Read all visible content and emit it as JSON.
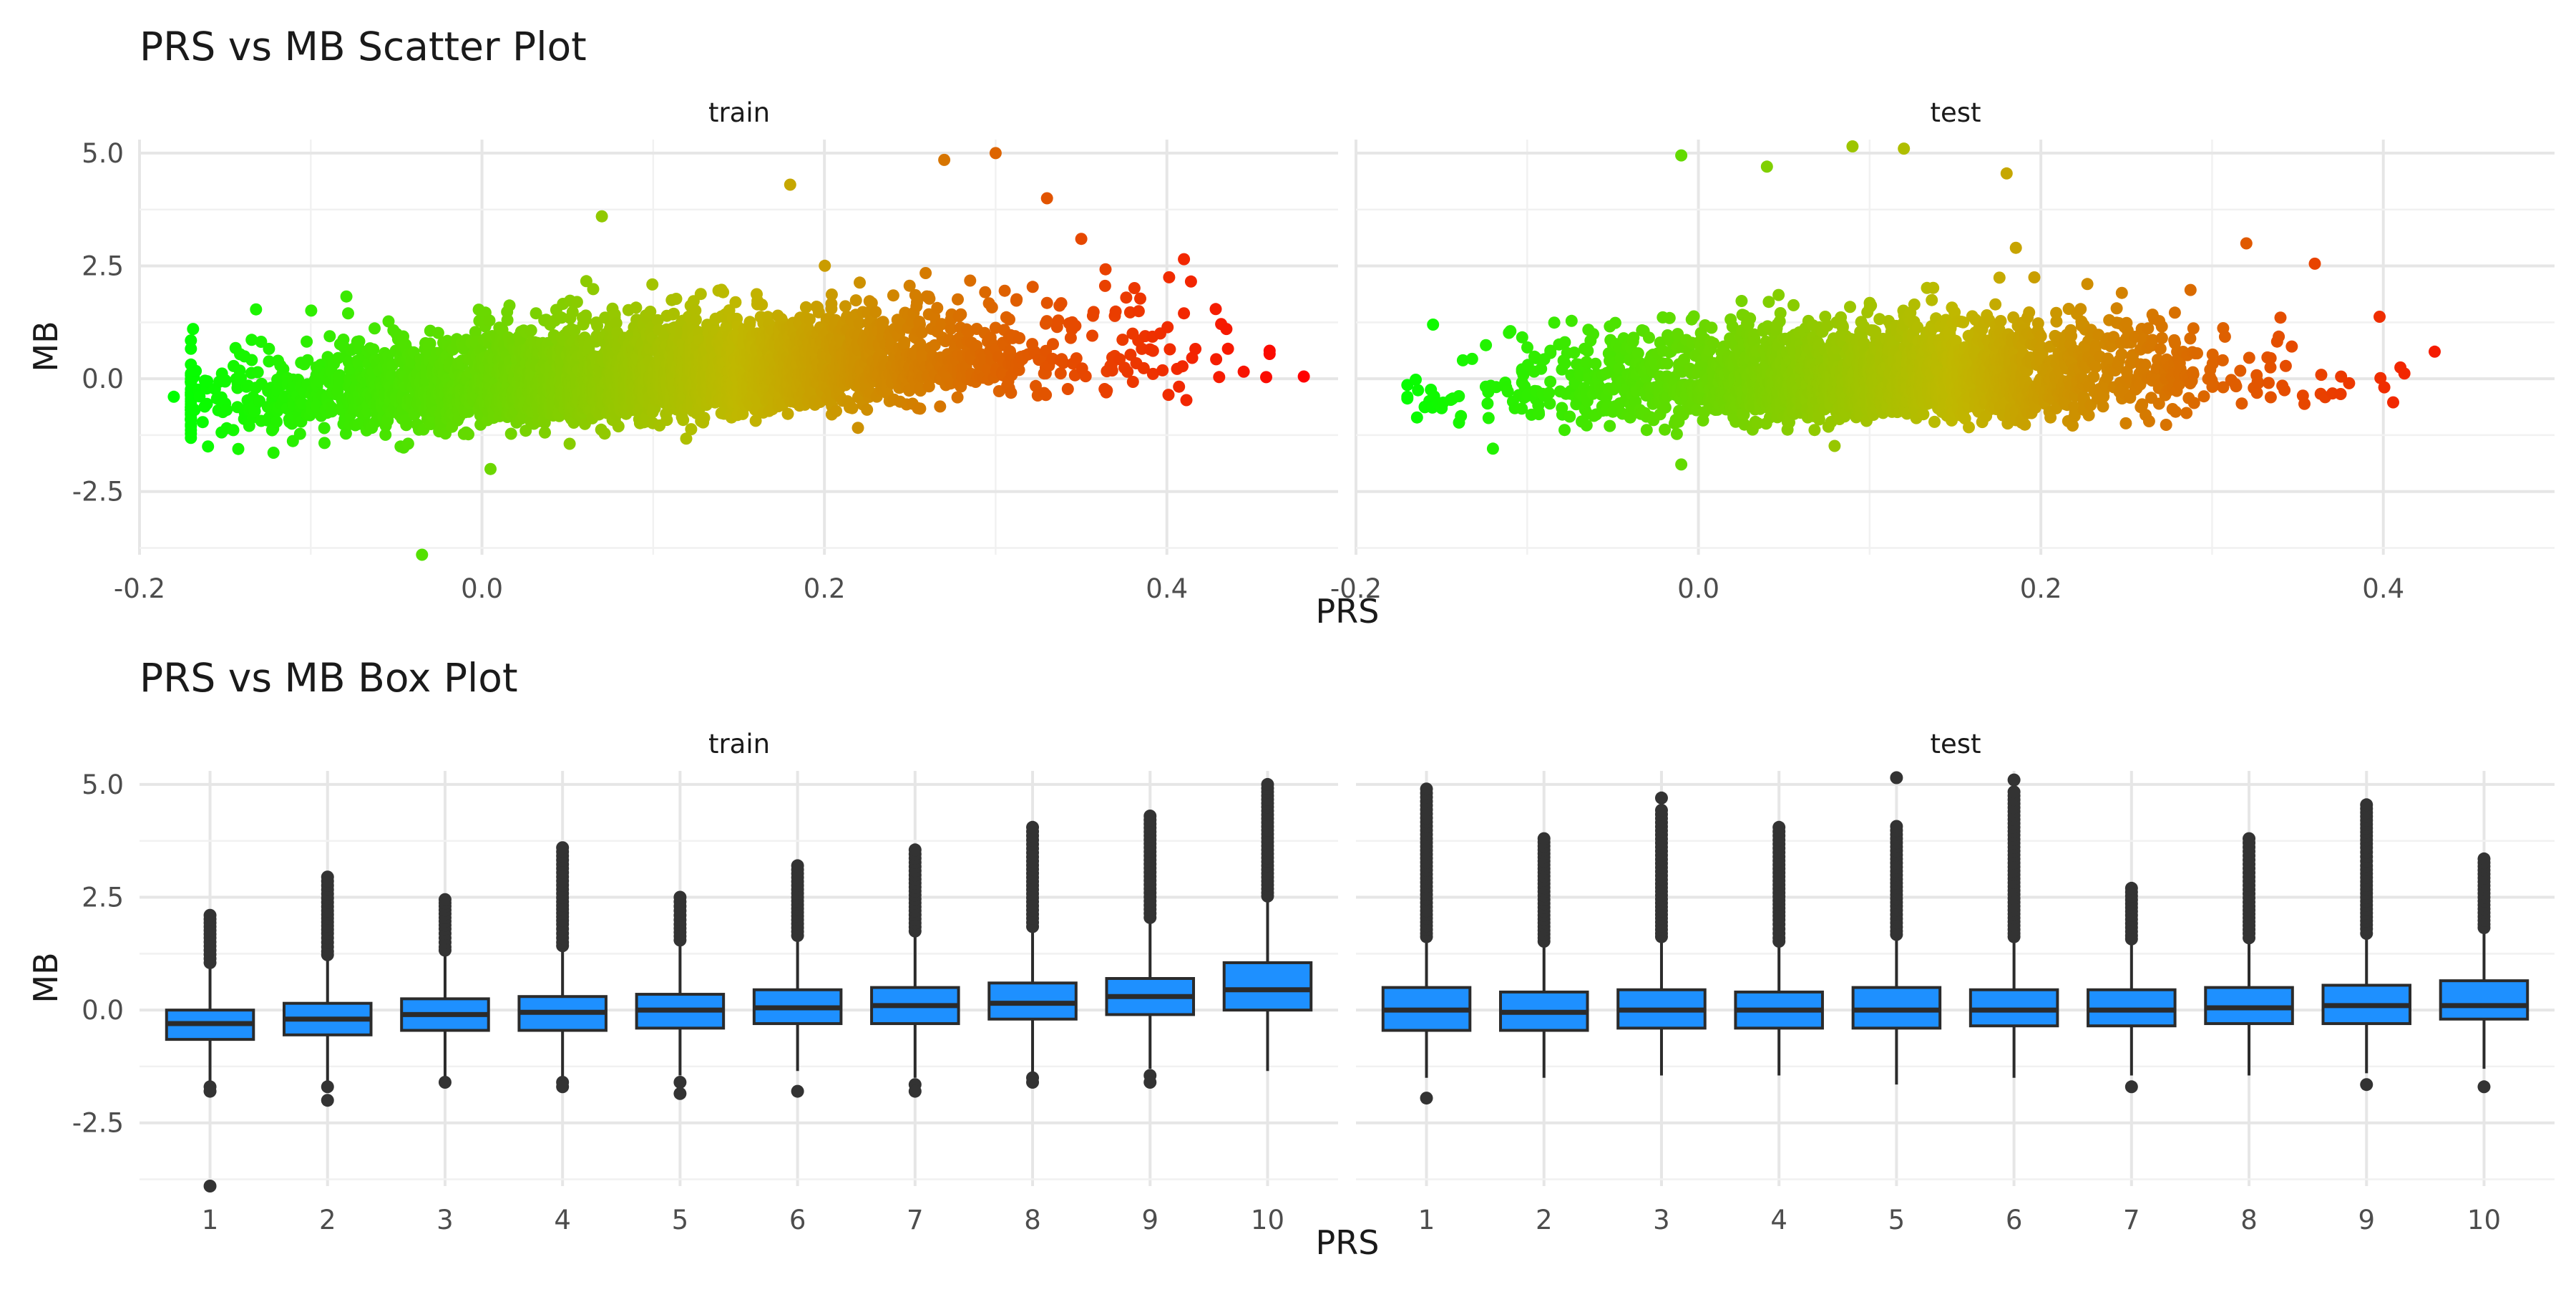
{
  "figure": {
    "scatter_title": "PRS vs MB Scatter Plot",
    "box_title": "PRS vs MB Box Plot"
  },
  "colors": {
    "gradient_low": "#00ff00",
    "gradient_mid": "#c0b800",
    "gradient_high": "#ff0000",
    "box_fill": "#1e90ff",
    "box_line": "#2b2b2b",
    "outlier": "#333333",
    "grid": "#e6e6e6"
  },
  "chart_data": [
    {
      "type": "scatter",
      "title": "PRS vs MB Scatter Plot",
      "xlabel": "PRS",
      "ylabel": "MB",
      "xlim": [
        -0.2,
        0.5
      ],
      "ylim": [
        -3.9,
        5.3
      ],
      "x_ticks": [
        -0.2,
        0.0,
        0.2,
        0.4
      ],
      "x_tick_labels": [
        "-0.2",
        "0.0",
        "0.2",
        "0.4"
      ],
      "y_ticks": [
        -2.5,
        0.0,
        2.5,
        5.0
      ],
      "y_tick_labels": [
        "-2.5",
        "0.0",
        "2.5",
        "5.0"
      ],
      "color_by": "PRS",
      "color_scale": [
        "#00ff00",
        "#c0b800",
        "#ff0000"
      ],
      "color_scale_positions": [
        -0.18,
        0.15,
        0.48
      ],
      "grid": true,
      "facets": [
        {
          "label": "train",
          "approx_points": 12000,
          "bulk_trend": {
            "x_range": [
              -0.15,
              0.33
            ],
            "y_at_min": -0.5,
            "y_at_max": 0.5,
            "spread_sd": 0.55
          },
          "highlighted_points": [
            {
              "x": 0.48,
              "y": 0.05
            },
            {
              "x": -0.035,
              "y": -3.9
            },
            {
              "x": 0.3,
              "y": 5.0
            },
            {
              "x": 0.27,
              "y": 4.85
            },
            {
              "x": 0.41,
              "y": 2.65
            },
            {
              "x": 0.41,
              "y": 1.45
            },
            {
              "x": -0.18,
              "y": -0.4
            },
            {
              "x": 0.07,
              "y": 3.6
            },
            {
              "x": 0.18,
              "y": 4.3
            },
            {
              "x": 0.35,
              "y": 3.1
            },
            {
              "x": -0.16,
              "y": -1.5
            },
            {
              "x": 0.38,
              "y": 1.0
            },
            {
              "x": 0.33,
              "y": 4.0
            },
            {
              "x": 0.005,
              "y": -2.0
            }
          ]
        },
        {
          "label": "test",
          "approx_points": 5000,
          "bulk_trend": {
            "x_range": [
              -0.1,
              0.3
            ],
            "y_at_min": -0.2,
            "y_at_max": 0.1,
            "spread_sd": 0.55
          },
          "highlighted_points": [
            {
              "x": 0.43,
              "y": 0.6
            },
            {
              "x": 0.41,
              "y": 0.25
            },
            {
              "x": 0.09,
              "y": 5.15
            },
            {
              "x": 0.12,
              "y": 5.1
            },
            {
              "x": -0.01,
              "y": 4.95
            },
            {
              "x": 0.04,
              "y": 4.7
            },
            {
              "x": 0.18,
              "y": 4.55
            },
            {
              "x": 0.32,
              "y": 3.0
            },
            {
              "x": 0.36,
              "y": 2.55
            },
            {
              "x": -0.17,
              "y": -0.4
            },
            {
              "x": -0.155,
              "y": 1.2
            },
            {
              "x": -0.12,
              "y": -1.55
            },
            {
              "x": 0.38,
              "y": -0.1
            },
            {
              "x": -0.01,
              "y": -1.9
            }
          ]
        }
      ]
    },
    {
      "type": "box",
      "title": "PRS vs MB Box Plot",
      "xlabel": "PRS",
      "ylabel": "MB",
      "categories": [
        "1",
        "2",
        "3",
        "4",
        "5",
        "6",
        "7",
        "8",
        "9",
        "10"
      ],
      "ylim": [
        -3.9,
        5.3
      ],
      "y_ticks": [
        -2.5,
        0.0,
        2.5,
        5.0
      ],
      "y_tick_labels": [
        "-2.5",
        "0.0",
        "2.5",
        "5.0"
      ],
      "grid": true,
      "facets": [
        {
          "label": "train",
          "boxes": [
            {
              "q1": -0.65,
              "median": -0.3,
              "q3": 0.0,
              "whisker_low": -1.6,
              "whisker_high": 0.95,
              "outliers_low": [
                -1.7,
                -1.8,
                -3.9
              ],
              "outliers_high": [
                1.05,
                1.6,
                2.1
              ]
            },
            {
              "q1": -0.55,
              "median": -0.2,
              "q3": 0.15,
              "whisker_low": -1.6,
              "whisker_high": 1.15,
              "outliers_low": [
                -1.7,
                -2.0
              ],
              "outliers_high": [
                1.3,
                1.7,
                2.2,
                2.95
              ]
            },
            {
              "q1": -0.45,
              "median": -0.1,
              "q3": 0.25,
              "whisker_low": -1.5,
              "whisker_high": 1.25,
              "outliers_low": [
                -1.6
              ],
              "outliers_high": [
                1.4,
                1.8,
                2.3,
                2.45
              ]
            },
            {
              "q1": -0.45,
              "median": -0.05,
              "q3": 0.3,
              "whisker_low": -1.55,
              "whisker_high": 1.35,
              "outliers_low": [
                -1.6,
                -1.7
              ],
              "outliers_high": [
                1.5,
                1.9,
                2.4,
                3.6
              ]
            },
            {
              "q1": -0.4,
              "median": 0.0,
              "q3": 0.35,
              "whisker_low": -1.45,
              "whisker_high": 1.45,
              "outliers_low": [
                -1.6,
                -1.85
              ],
              "outliers_high": [
                1.55,
                1.9,
                2.2,
                2.5
              ]
            },
            {
              "q1": -0.3,
              "median": 0.05,
              "q3": 0.45,
              "whisker_low": -1.35,
              "whisker_high": 1.55,
              "outliers_low": [
                -1.8
              ],
              "outliers_high": [
                1.65,
                2.0,
                2.5,
                3.2
              ]
            },
            {
              "q1": -0.3,
              "median": 0.1,
              "q3": 0.5,
              "whisker_low": -1.5,
              "whisker_high": 1.65,
              "outliers_low": [
                -1.65,
                -1.8
              ],
              "outliers_high": [
                1.75,
                2.2,
                2.9,
                3.55
              ]
            },
            {
              "q1": -0.2,
              "median": 0.15,
              "q3": 0.6,
              "whisker_low": -1.45,
              "whisker_high": 1.75,
              "outliers_low": [
                -1.5,
                -1.6
              ],
              "outliers_high": [
                1.85,
                2.4,
                3.3,
                4.05
              ]
            },
            {
              "q1": -0.1,
              "median": 0.3,
              "q3": 0.7,
              "whisker_low": -1.3,
              "whisker_high": 1.95,
              "outliers_low": [
                -1.45,
                -1.6
              ],
              "outliers_high": [
                2.05,
                2.6,
                3.6,
                4.3
              ]
            },
            {
              "q1": 0.0,
              "median": 0.45,
              "q3": 1.05,
              "whisker_low": -1.35,
              "whisker_high": 2.45,
              "outliers_low": [],
              "outliers_high": [
                2.6,
                3.2,
                3.9,
                4.5,
                5.0
              ]
            }
          ]
        },
        {
          "label": "test",
          "boxes": [
            {
              "q1": -0.45,
              "median": 0.0,
              "q3": 0.5,
              "whisker_low": -1.5,
              "whisker_high": 1.55,
              "outliers_low": [
                -1.95
              ],
              "outliers_high": [
                1.7,
                2.2,
                3.1,
                3.8,
                4.9
              ]
            },
            {
              "q1": -0.45,
              "median": -0.05,
              "q3": 0.4,
              "whisker_low": -1.5,
              "whisker_high": 1.45,
              "outliers_low": [],
              "outliers_high": [
                1.6,
                2.1,
                2.8,
                3.3,
                3.8
              ]
            },
            {
              "q1": -0.4,
              "median": 0.0,
              "q3": 0.45,
              "whisker_low": -1.45,
              "whisker_high": 1.55,
              "outliers_low": [],
              "outliers_high": [
                1.7,
                2.2,
                2.8,
                3.25,
                4.7
              ]
            },
            {
              "q1": -0.4,
              "median": 0.0,
              "q3": 0.4,
              "whisker_low": -1.45,
              "whisker_high": 1.45,
              "outliers_low": [],
              "outliers_high": [
                1.6,
                2.0,
                2.6,
                3.4,
                4.05
              ]
            },
            {
              "q1": -0.4,
              "median": 0.0,
              "q3": 0.5,
              "whisker_low": -1.65,
              "whisker_high": 1.6,
              "outliers_low": [],
              "outliers_high": [
                1.75,
                2.3,
                2.9,
                5.15
              ]
            },
            {
              "q1": -0.35,
              "median": 0.0,
              "q3": 0.45,
              "whisker_low": -1.5,
              "whisker_high": 1.55,
              "outliers_low": [],
              "outliers_high": [
                1.7,
                2.3,
                3.0,
                3.7,
                5.1
              ]
            },
            {
              "q1": -0.35,
              "median": 0.0,
              "q3": 0.45,
              "whisker_low": -1.45,
              "whisker_high": 1.5,
              "outliers_low": [
                -1.7
              ],
              "outliers_high": [
                1.65,
                2.1,
                2.7
              ]
            },
            {
              "q1": -0.3,
              "median": 0.05,
              "q3": 0.5,
              "whisker_low": -1.45,
              "whisker_high": 1.5,
              "outliers_low": [],
              "outliers_high": [
                1.7,
                2.3,
                2.95,
                3.8
              ]
            },
            {
              "q1": -0.3,
              "median": 0.1,
              "q3": 0.55,
              "whisker_low": -1.4,
              "whisker_high": 1.6,
              "outliers_low": [
                -1.65
              ],
              "outliers_high": [
                1.8,
                2.5,
                3.2,
                3.6,
                4.55
              ]
            },
            {
              "q1": -0.2,
              "median": 0.1,
              "q3": 0.65,
              "whisker_low": -1.3,
              "whisker_high": 1.75,
              "outliers_low": [
                -1.7
              ],
              "outliers_high": [
                1.9,
                2.5,
                3.1,
                3.35
              ]
            }
          ]
        }
      ]
    }
  ]
}
